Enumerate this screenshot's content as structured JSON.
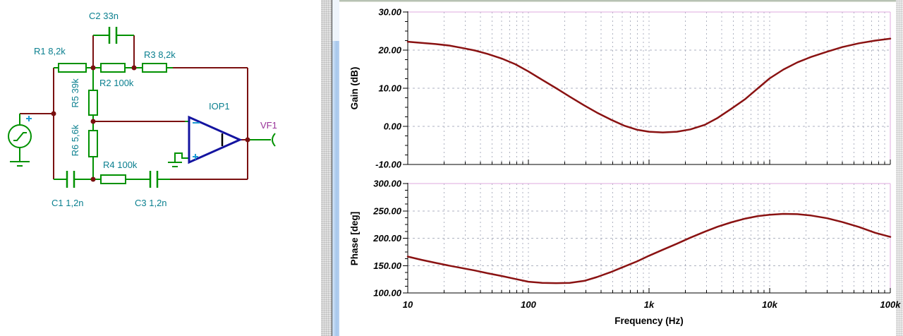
{
  "colors": {
    "wire_green": "#009100",
    "wire_dark": "#7a1010",
    "opamp_blue": "#1414a0",
    "sign_cyan": "#1e9ad2",
    "label_teal": "#0a7f8f",
    "probe_purple": "#993399",
    "curve_maroon": "#8a1212",
    "frame_pink": "#dfa8df",
    "grid_gray": "#aeb2c0"
  },
  "schematic": {
    "components": {
      "c2": "C2 33n",
      "r1": "R1 8,2k",
      "r3": "R3 8,2k",
      "r2": "R2 100k",
      "r5": "R5 39k",
      "r6": "R6 5,6k",
      "r4": "R4 100k",
      "c1": "C1 1,2n",
      "c3": "C3 1,2n",
      "opamp": "IOP1",
      "probe": "VF1"
    }
  },
  "chart_data": [
    {
      "type": "line",
      "name": "gain",
      "title": "",
      "ylabel": "Gain (dB)",
      "xlabel": "",
      "xscale": "log",
      "xlim": [
        10,
        100000
      ],
      "ylim": [
        -10,
        30
      ],
      "grid": "dashed",
      "y_ticks": [
        {
          "v": 30,
          "label": "30.00"
        },
        {
          "v": 20,
          "label": "20.00"
        },
        {
          "v": 10,
          "label": "10.00"
        },
        {
          "v": 0,
          "label": "0.00"
        },
        {
          "v": -10,
          "label": "-10.00"
        }
      ],
      "y_minor_step": 2.5,
      "grid_y": [
        20,
        10,
        0
      ],
      "series": [
        {
          "name": "Gain",
          "color": "#8a1212",
          "points": [
            [
              10,
              22.2
            ],
            [
              13,
              21.9
            ],
            [
              17,
              21.6
            ],
            [
              22,
              21.2
            ],
            [
              28,
              20.6
            ],
            [
              36,
              19.9
            ],
            [
              46,
              19
            ],
            [
              60,
              17.8
            ],
            [
              78,
              16.3
            ],
            [
              100,
              14.4
            ],
            [
              130,
              12.2
            ],
            [
              170,
              10
            ],
            [
              220,
              7.8
            ],
            [
              290,
              5.5
            ],
            [
              370,
              3.6
            ],
            [
              480,
              1.8
            ],
            [
              620,
              0.2
            ],
            [
              800,
              -0.9
            ],
            [
              1000,
              -1.4
            ],
            [
              1300,
              -1.6
            ],
            [
              1700,
              -1.4
            ],
            [
              2200,
              -0.8
            ],
            [
              2900,
              0.4
            ],
            [
              3700,
              2.2
            ],
            [
              4800,
              4.6
            ],
            [
              6300,
              7.2
            ],
            [
              8000,
              10
            ],
            [
              10000,
              12.6
            ],
            [
              13000,
              14.9
            ],
            [
              17000,
              16.8
            ],
            [
              22000,
              18.2
            ],
            [
              30000,
              19.6
            ],
            [
              40000,
              20.8
            ],
            [
              55000,
              21.8
            ],
            [
              75000,
              22.5
            ],
            [
              100000,
              23
            ]
          ]
        }
      ]
    },
    {
      "type": "line",
      "name": "phase",
      "title": "",
      "ylabel": "Phase [deg]",
      "xlabel": "Frequency (Hz)",
      "xscale": "log",
      "xlim": [
        10,
        100000
      ],
      "ylim": [
        100,
        300
      ],
      "grid": "dashed",
      "y_ticks": [
        {
          "v": 300,
          "label": "300.00"
        },
        {
          "v": 250,
          "label": "250.00"
        },
        {
          "v": 200,
          "label": "200.00"
        },
        {
          "v": 150,
          "label": "150.00"
        },
        {
          "v": 100,
          "label": "100.00"
        }
      ],
      "y_minor_step": 12.5,
      "grid_y": [
        250,
        200,
        150
      ],
      "x_ticks": [
        {
          "v": 10,
          "label": "10"
        },
        {
          "v": 100,
          "label": "100"
        },
        {
          "v": 1000,
          "label": "1k"
        },
        {
          "v": 10000,
          "label": "10k"
        },
        {
          "v": 100000,
          "label": "100k"
        }
      ],
      "series": [
        {
          "name": "Phase",
          "color": "#8a1212",
          "points": [
            [
              10,
              166.5
            ],
            [
              13,
              160.5
            ],
            [
              17,
              155
            ],
            [
              22,
              150
            ],
            [
              28,
              145.5
            ],
            [
              36,
              141
            ],
            [
              46,
              136
            ],
            [
              60,
              131
            ],
            [
              78,
              125.5
            ],
            [
              100,
              120.5
            ],
            [
              130,
              118.5
            ],
            [
              170,
              118
            ],
            [
              220,
              118.5
            ],
            [
              290,
              122
            ],
            [
              370,
              129
            ],
            [
              480,
              138
            ],
            [
              620,
              148
            ],
            [
              800,
              158
            ],
            [
              1000,
              168
            ],
            [
              1300,
              179
            ],
            [
              1700,
              190
            ],
            [
              2200,
              201
            ],
            [
              2900,
              212
            ],
            [
              3700,
              221
            ],
            [
              4800,
              229
            ],
            [
              6300,
              236
            ],
            [
              8000,
              240.5
            ],
            [
              10000,
              243
            ],
            [
              13000,
              244.5
            ],
            [
              17000,
              244
            ],
            [
              22000,
              241.5
            ],
            [
              30000,
              236.5
            ],
            [
              40000,
              229.5
            ],
            [
              55000,
              220.5
            ],
            [
              75000,
              210
            ],
            [
              100000,
              202.5
            ]
          ]
        }
      ]
    }
  ]
}
